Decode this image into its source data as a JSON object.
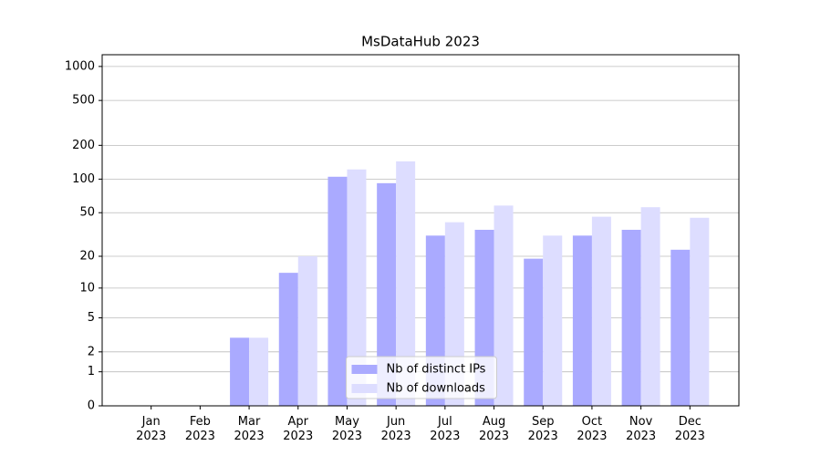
{
  "chart_data": {
    "type": "bar",
    "title": "MsDataHub 2023",
    "categories": [
      "Jan\n2023",
      "Feb\n2023",
      "Mar\n2023",
      "Apr\n2023",
      "May\n2023",
      "Jun\n2023",
      "Jul\n2023",
      "Aug\n2023",
      "Sep\n2023",
      "Oct\n2023",
      "Nov\n2023",
      "Dec\n2023"
    ],
    "series": [
      {
        "name": "Nb of distinct IPs",
        "color": "#aaaaff",
        "values": [
          0,
          0,
          3,
          14,
          105,
          92,
          31,
          35,
          19,
          31,
          35,
          23
        ]
      },
      {
        "name": "Nb of downloads",
        "color": "#ddddff",
        "values": [
          0,
          0,
          3,
          20,
          122,
          144,
          41,
          58,
          31,
          46,
          56,
          45
        ]
      }
    ],
    "yscale": "log1p",
    "ylim": [
      0,
      1270
    ],
    "yticks": [
      0,
      1,
      2,
      5,
      10,
      20,
      50,
      100,
      200,
      500,
      1000
    ],
    "grid": true,
    "legend": "lower center"
  }
}
